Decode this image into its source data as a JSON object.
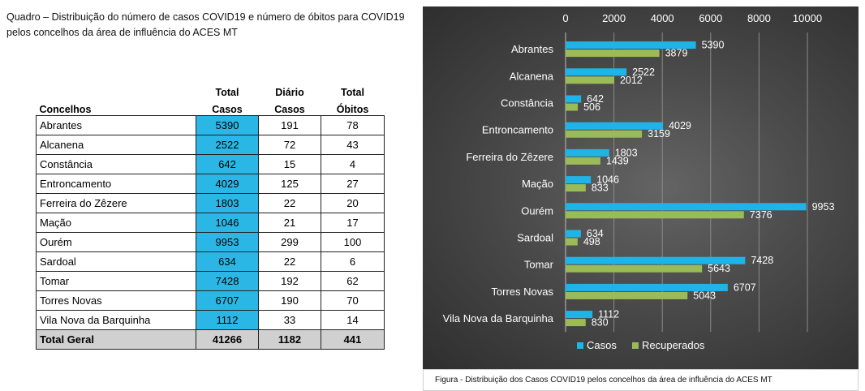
{
  "left_title": "Quadro – Distribuição do número de casos COVID19 e número de óbitos para COVID19 pelos concelhos da área de influência do ACES MT",
  "table": {
    "header": {
      "concelhos": "Concelhos",
      "total_casos_line1": "Total",
      "total_casos_line2": "Casos",
      "diario_casos_line1": "Diário",
      "diario_casos_line2": "Casos",
      "total_obitos_line1": "Total",
      "total_obitos_line2": "Óbitos"
    },
    "rows": [
      {
        "name": "Abrantes",
        "cases": "5390",
        "daily": "191",
        "deaths": "78"
      },
      {
        "name": "Alcanena",
        "cases": "2522",
        "daily": "72",
        "deaths": "43"
      },
      {
        "name": "Constância",
        "cases": "642",
        "daily": "15",
        "deaths": "4"
      },
      {
        "name": "Entroncamento",
        "cases": "4029",
        "daily": "125",
        "deaths": "27"
      },
      {
        "name": "Ferreira do Zêzere",
        "cases": "1803",
        "daily": "22",
        "deaths": "20"
      },
      {
        "name": "Mação",
        "cases": "1046",
        "daily": "21",
        "deaths": "17"
      },
      {
        "name": "Ourém",
        "cases": "9953",
        "daily": "299",
        "deaths": "100"
      },
      {
        "name": "Sardoal",
        "cases": "634",
        "daily": "22",
        "deaths": "6"
      },
      {
        "name": "Tomar",
        "cases": "7428",
        "daily": "192",
        "deaths": "62"
      },
      {
        "name": "Torres Novas",
        "cases": "6707",
        "daily": "190",
        "deaths": "70"
      },
      {
        "name": "Vila Nova da Barquinha",
        "cases": "1112",
        "daily": "33",
        "deaths": "14"
      }
    ],
    "total": {
      "name": "Total Geral",
      "cases": "41266",
      "daily": "1182",
      "deaths": "441"
    }
  },
  "chart_caption": "Figura -  Distribuição dos Casos COVID19 pelos concelhos da área de influência do ACES MT",
  "colors": {
    "casos": "#1fb4e8",
    "recuperados": "#9bbb59",
    "axis_text": "#ffffff",
    "gridline": "#8a8a8a"
  },
  "chart_data": {
    "type": "bar",
    "orientation": "horizontal",
    "categories": [
      "Abrantes",
      "Alcanena",
      "Constância",
      "Entroncamento",
      "Ferreira do Zêzere",
      "Mação",
      "Ourém",
      "Sardoal",
      "Tomar",
      "Torres Novas",
      "Vila Nova da Barquinha"
    ],
    "series": [
      {
        "name": "Casos",
        "values": [
          5390,
          2522,
          642,
          4029,
          1803,
          1046,
          9953,
          634,
          7428,
          6707,
          1112
        ]
      },
      {
        "name": "Recuperados",
        "values": [
          3879,
          2012,
          506,
          3159,
          1439,
          833,
          7376,
          498,
          5643,
          5043,
          830
        ]
      }
    ],
    "xlim": [
      0,
      10000
    ],
    "xticks": [
      "0",
      "2000",
      "4000",
      "6000",
      "8000",
      "10000"
    ],
    "xaxis_position": "top",
    "grid": true,
    "legend": "bottom",
    "data_labels": true
  }
}
